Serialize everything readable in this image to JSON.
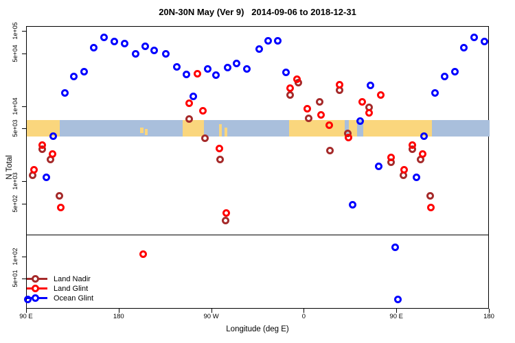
{
  "title": "20N-30N May (Ver 9)   2014-09-06 to 2018-12-31",
  "chart_data": {
    "type": "scatter",
    "title": "20N-30N May (Ver 9)   2014-09-06 to 2018-12-31",
    "xlabel": "Longitude (deg E)",
    "ylabel": "N Total",
    "x_axis": {
      "start_deg_e": 90,
      "span_deg": 450,
      "tick_interval_deg": 90,
      "tick_labels": [
        "90 E",
        "180",
        "90 W",
        "0",
        "90 E",
        "180"
      ],
      "note_visible_duplication": "longitudes 90E-180E plotted at both ends of axis"
    },
    "y_axis": {
      "scale": "log",
      "tick_labels": [
        "1e+05",
        "5e+04",
        "1e+04",
        "5e+03",
        "1e+03",
        "5e+02",
        "1e+02",
        "5e+01"
      ],
      "tick_values": [
        100000,
        50000,
        10000,
        5000,
        1000,
        500,
        100,
        50
      ],
      "top_value": 100000
    },
    "reference_line": {
      "value": 200
    },
    "map_strip": {
      "land_color": "#FAD67D",
      "ocean_color": "#A9BFDC",
      "band_n_range": [
        4000,
        6600
      ],
      "land_segments": [
        {
          "from": 0,
          "to": 32
        },
        {
          "from": 110,
          "to": 113.5,
          "top": 0.45,
          "h": 0.35
        },
        {
          "from": 114.8,
          "to": 117.5,
          "top": 0.55,
          "h": 0.35
        },
        {
          "from": 151.6,
          "to": 172.2
        },
        {
          "from": 187,
          "to": 189.5,
          "top": 0.25,
          "h": 0.75
        },
        {
          "from": 192,
          "to": 195,
          "top": 0.45,
          "h": 0.55
        },
        {
          "from": 255,
          "to": 309
        },
        {
          "from": 313,
          "to": 321
        },
        {
          "from": 327,
          "to": 394
        }
      ]
    },
    "series": [
      {
        "name": "Land Nadir",
        "color": "#A52A2A",
        "points": [
          [
            96,
            1230
          ],
          [
            105,
            2690
          ],
          [
            113,
            1960
          ],
          [
            122,
            656
          ],
          [
            -112,
            6780
          ],
          [
            -97,
            3840
          ],
          [
            -82,
            1960
          ],
          [
            -77,
            308
          ],
          [
            -14,
            14200
          ],
          [
            -6,
            20700
          ],
          [
            4,
            7060
          ],
          [
            15,
            11700
          ],
          [
            25,
            2580
          ],
          [
            34,
            16700
          ],
          [
            42,
            4450
          ],
          [
            63,
            9890
          ],
          [
            84,
            1840
          ]
        ]
      },
      {
        "name": "Land Glint",
        "color": "#FF0000",
        "points": [
          [
            97,
            1460
          ],
          [
            105,
            3110
          ],
          [
            115,
            2320
          ],
          [
            123,
            459
          ],
          [
            -157,
            108
          ],
          [
            -112,
            11000
          ],
          [
            -104,
            27700
          ],
          [
            -99,
            8730
          ],
          [
            -83,
            2800
          ],
          [
            -76,
            388
          ],
          [
            -14,
            17800
          ],
          [
            -7,
            23400
          ],
          [
            3,
            9480
          ],
          [
            16,
            7850
          ],
          [
            24,
            5610
          ],
          [
            34,
            19400
          ],
          [
            43,
            3920
          ],
          [
            56,
            11500
          ],
          [
            63,
            8360
          ],
          [
            74,
            14200
          ],
          [
            84,
            2090
          ]
        ]
      },
      {
        "name": "Ocean Glint",
        "color": "#0000FF",
        "points": [
          [
            127,
            15100
          ],
          [
            136,
            25000
          ],
          [
            146,
            29500
          ],
          [
            155,
            60400
          ],
          [
            165,
            82800
          ],
          [
            175,
            73000
          ],
          [
            -175,
            68500
          ],
          [
            -164,
            51000
          ],
          [
            -155,
            64300
          ],
          [
            -146,
            56600
          ],
          [
            -135,
            50000
          ],
          [
            -124,
            34200
          ],
          [
            -115,
            26600
          ],
          [
            -108,
            13600
          ],
          [
            -94,
            31500
          ],
          [
            -86,
            26100
          ],
          [
            -75,
            33500
          ],
          [
            -66,
            38000
          ],
          [
            -56,
            32100
          ],
          [
            -44,
            59100
          ],
          [
            -35,
            76000
          ],
          [
            -26,
            76000
          ],
          [
            -18,
            28900
          ],
          [
            116,
            4090
          ],
          [
            109,
            1140
          ],
          [
            91,
            27
          ],
          [
            88,
            135
          ],
          [
            72,
            1590
          ],
          [
            64,
            19000
          ],
          [
            54,
            6370
          ],
          [
            47,
            490
          ]
        ]
      }
    ],
    "legend_position": "bottom-left"
  },
  "legend": {
    "items": [
      "Land Nadir",
      "Land Glint",
      "Ocean Glint"
    ]
  }
}
